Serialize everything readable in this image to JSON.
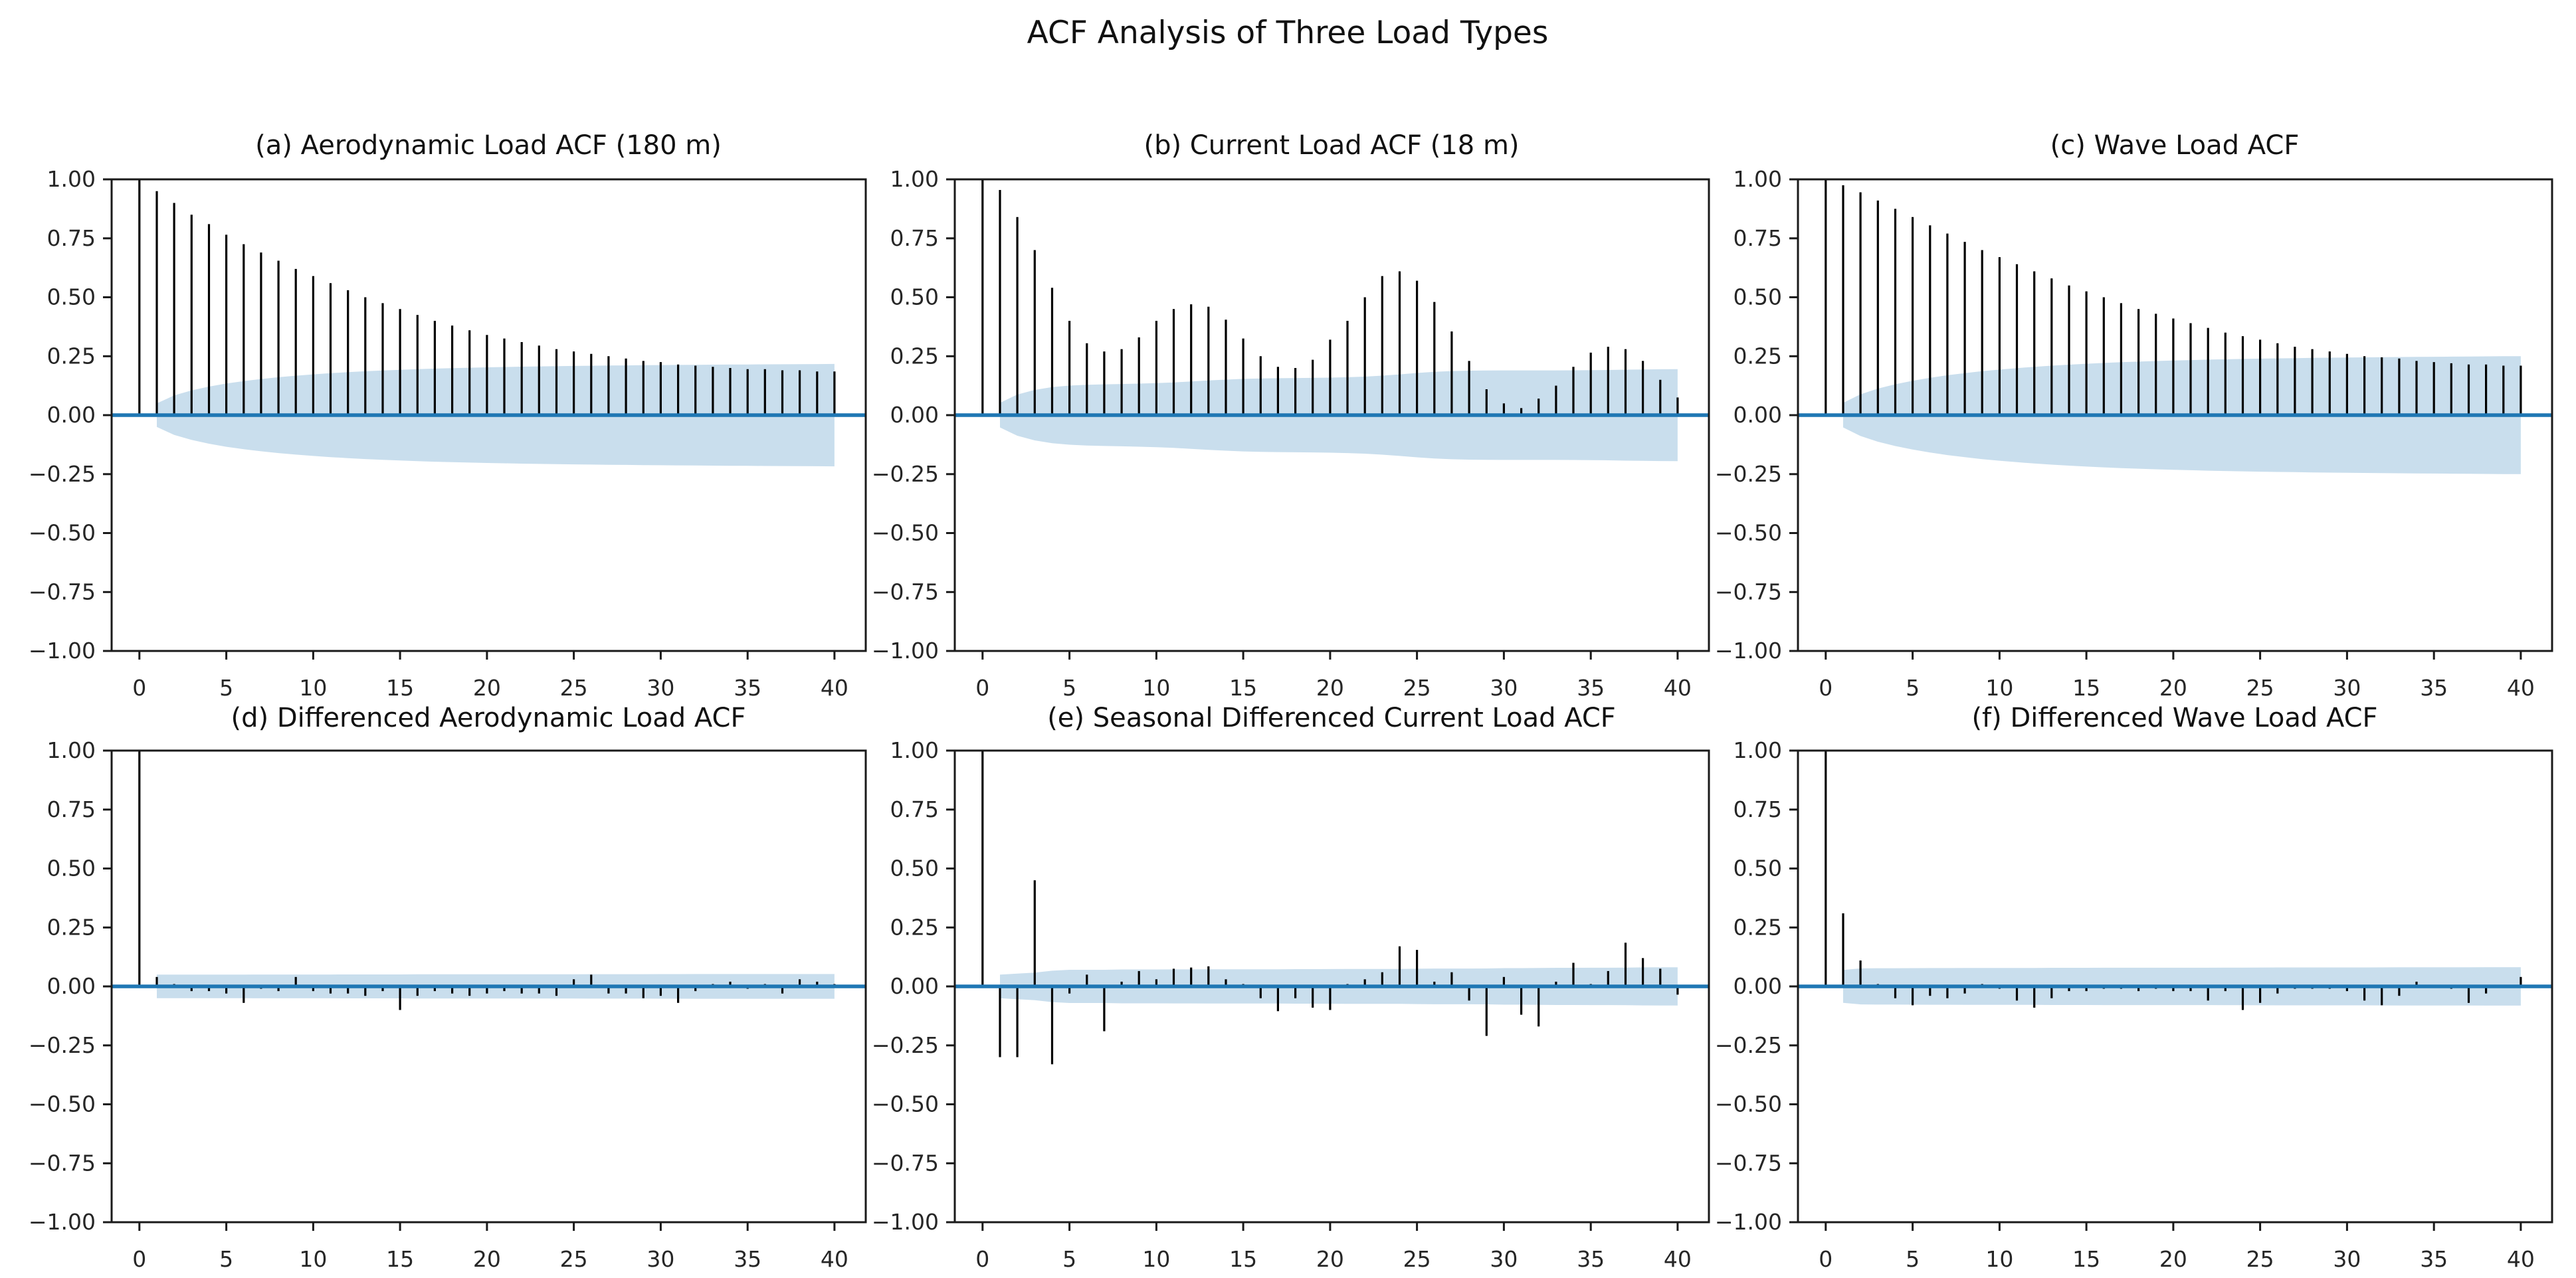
{
  "figure": {
    "suptitle": "ACF Analysis of Three Load Types",
    "background_color": "#ffffff",
    "stem_color": "#000000",
    "accent_color": "#1f77b4",
    "band_fill_color": "#1f77b4",
    "band_opacity": 0.24,
    "axis_color": "#1a1a1a",
    "tick_label_color": "#262626"
  },
  "chart_data": {
    "type": "stem",
    "layout": "2 rows x 3 cols",
    "title": "ACF Analysis of Three Load Types",
    "xlabel": "",
    "ylabel": "",
    "grid": false,
    "legend": null,
    "ylim": [
      -1.0,
      1.0
    ],
    "xlim": [
      -1.6,
      41.8
    ],
    "lags": [
      0,
      1,
      2,
      3,
      4,
      5,
      6,
      7,
      8,
      9,
      10,
      11,
      12,
      13,
      14,
      15,
      16,
      17,
      18,
      19,
      20,
      21,
      22,
      23,
      24,
      25,
      26,
      27,
      28,
      29,
      30,
      31,
      32,
      33,
      34,
      35,
      36,
      37,
      38,
      39,
      40
    ],
    "x_ticks": [
      0,
      5,
      10,
      15,
      20,
      25,
      30,
      35,
      40
    ],
    "y_ticks": [
      1.0,
      0.75,
      0.5,
      0.25,
      0.0,
      -0.25,
      -0.5,
      -0.75,
      -1.0
    ],
    "y_tick_labels": [
      "1.00",
      "0.75",
      "0.50",
      "0.25",
      "0.00",
      "−0.25",
      "−0.50",
      "−0.75",
      "−1.00"
    ],
    "panels": [
      {
        "id": "a",
        "title": "(a) Aerodynamic Load ACF (180 m)",
        "conf_scale": 0.05,
        "values": [
          1.0,
          0.95,
          0.9,
          0.85,
          0.81,
          0.765,
          0.725,
          0.69,
          0.655,
          0.62,
          0.59,
          0.56,
          0.53,
          0.5,
          0.475,
          0.45,
          0.425,
          0.4,
          0.38,
          0.36,
          0.34,
          0.325,
          0.31,
          0.295,
          0.28,
          0.27,
          0.26,
          0.25,
          0.24,
          0.23,
          0.225,
          0.215,
          0.21,
          0.205,
          0.2,
          0.195,
          0.195,
          0.19,
          0.19,
          0.185,
          0.185
        ]
      },
      {
        "id": "b",
        "title": "(b) Current Load ACF (18 m)",
        "conf_scale": 0.052,
        "values": [
          1.0,
          0.955,
          0.84,
          0.7,
          0.54,
          0.4,
          0.305,
          0.27,
          0.28,
          0.33,
          0.4,
          0.45,
          0.47,
          0.46,
          0.405,
          0.325,
          0.25,
          0.205,
          0.2,
          0.235,
          0.32,
          0.4,
          0.5,
          0.59,
          0.61,
          0.57,
          0.48,
          0.355,
          0.23,
          0.11,
          0.05,
          0.03,
          0.07,
          0.125,
          0.205,
          0.265,
          0.29,
          0.28,
          0.23,
          0.15,
          0.075
        ]
      },
      {
        "id": "c",
        "title": "(c) Wave Load ACF",
        "conf_scale": 0.052,
        "values": [
          1.0,
          0.975,
          0.945,
          0.91,
          0.875,
          0.84,
          0.805,
          0.77,
          0.735,
          0.7,
          0.67,
          0.64,
          0.61,
          0.58,
          0.55,
          0.525,
          0.5,
          0.475,
          0.45,
          0.43,
          0.41,
          0.39,
          0.37,
          0.35,
          0.335,
          0.32,
          0.305,
          0.29,
          0.28,
          0.27,
          0.26,
          0.25,
          0.245,
          0.24,
          0.23,
          0.225,
          0.22,
          0.215,
          0.215,
          0.21,
          0.21
        ]
      },
      {
        "id": "d",
        "title": "(d) Differenced Aerodynamic Load ACF",
        "conf_scale": 0.05,
        "values": [
          1.0,
          0.04,
          0.01,
          -0.02,
          -0.02,
          -0.03,
          -0.07,
          -0.01,
          -0.02,
          0.04,
          -0.02,
          -0.03,
          -0.03,
          -0.04,
          -0.02,
          -0.1,
          -0.04,
          -0.02,
          -0.03,
          -0.04,
          -0.03,
          -0.02,
          -0.03,
          -0.03,
          -0.04,
          0.03,
          0.05,
          -0.03,
          -0.03,
          -0.05,
          -0.04,
          -0.07,
          -0.02,
          0.01,
          0.02,
          -0.01,
          0.01,
          -0.03,
          0.03,
          0.02,
          0.01
        ]
      },
      {
        "id": "e",
        "title": "(e) Seasonal Differenced Current Load ACF",
        "conf_scale": 0.05,
        "values": [
          1.0,
          -0.3,
          -0.3,
          0.45,
          -0.33,
          -0.03,
          0.05,
          -0.19,
          0.02,
          0.065,
          0.03,
          0.075,
          0.08,
          0.085,
          0.03,
          0.01,
          -0.05,
          -0.105,
          -0.05,
          -0.09,
          -0.1,
          0.01,
          0.03,
          0.06,
          0.17,
          0.155,
          0.02,
          0.06,
          -0.06,
          -0.21,
          0.04,
          -0.12,
          -0.17,
          0.02,
          0.1,
          0.01,
          0.065,
          0.185,
          0.12,
          0.075,
          -0.035
        ]
      },
      {
        "id": "f",
        "title": "(f) Differenced Wave Load ACF",
        "conf_scale": 0.07,
        "values": [
          1.0,
          0.31,
          0.11,
          0.01,
          -0.05,
          -0.08,
          -0.04,
          -0.05,
          -0.03,
          0.01,
          -0.01,
          -0.06,
          -0.09,
          -0.05,
          -0.02,
          -0.02,
          -0.01,
          -0.01,
          -0.02,
          -0.01,
          -0.02,
          -0.02,
          -0.06,
          -0.02,
          -0.1,
          -0.07,
          -0.03,
          -0.01,
          -0.01,
          -0.01,
          -0.02,
          -0.06,
          -0.08,
          -0.04,
          0.02,
          0.0,
          -0.01,
          -0.07,
          -0.03,
          0.0,
          0.04
        ]
      }
    ]
  }
}
